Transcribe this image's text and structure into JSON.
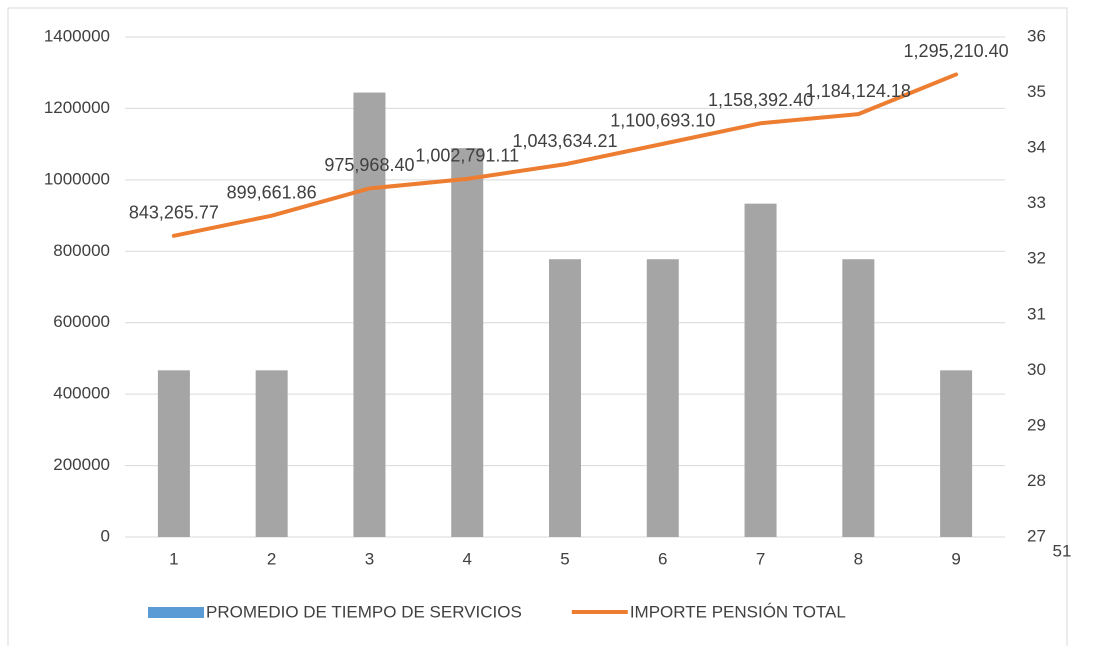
{
  "chart_data": {
    "type": "bar-line",
    "categories": [
      "1",
      "2",
      "3",
      "4",
      "5",
      "6",
      "7",
      "8",
      "9"
    ],
    "series": [
      {
        "name": "PROMEDIO DE TIEMPO DE SERVICIOS",
        "type": "bar",
        "axis": "y2",
        "color": "#a5a5a5",
        "legend_color": "#5b9bd5",
        "values": [
          30,
          30,
          35,
          34,
          32,
          32,
          33,
          32,
          30
        ]
      },
      {
        "name": "IMPORTE PENSIÓN TOTAL",
        "type": "line",
        "axis": "y",
        "color": "#ed7d31",
        "values": [
          843265.77,
          899661.86,
          975968.4,
          1002791.11,
          1043634.21,
          1100693.1,
          1158392.4,
          1184124.18,
          1295210.4
        ],
        "value_labels": [
          "843,265.77",
          "899,661.86",
          "975,968.40",
          "1,002,791.11",
          "1,043,634.21",
          "1,100,693.10",
          "1,158,392.40",
          "1,184,124.18",
          "1,295,210.40"
        ]
      }
    ],
    "ylim": [
      0,
      1400000
    ],
    "yticks": [
      0,
      200000,
      400000,
      600000,
      800000,
      1000000,
      1200000,
      1400000
    ],
    "y2lim": [
      27,
      36
    ],
    "y2ticks": [
      27,
      28,
      29,
      30,
      31,
      32,
      33,
      34,
      35,
      36
    ],
    "grid": true,
    "annotation": "51"
  }
}
